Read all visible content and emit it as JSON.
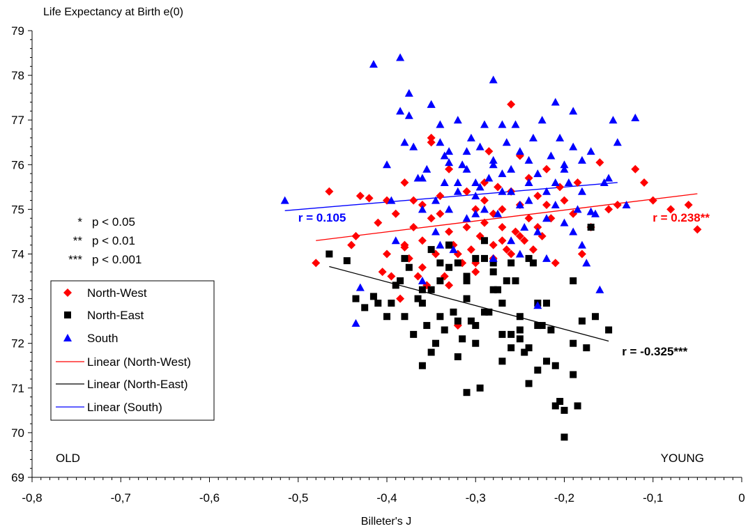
{
  "chart_data": {
    "type": "scatter",
    "title": "",
    "ylabel": "Life Expectancy at Birth e(0)",
    "xlabel": "Billeter's J",
    "xlim": [
      -0.8,
      0
    ],
    "ylim": [
      69,
      79
    ],
    "x_ticks": [
      "-0,8",
      "-0,7",
      "-0,6",
      "-0,5",
      "-0,4",
      "-0,3",
      "-0,2",
      "-0,1",
      "0"
    ],
    "y_ticks": [
      "69",
      "70",
      "71",
      "72",
      "73",
      "74",
      "75",
      "76",
      "77",
      "78",
      "79"
    ],
    "legend_placement": "left",
    "grid": false,
    "corner_labels": {
      "left": "OLD",
      "right": "YOUNG"
    },
    "significance": [
      "p < 0.05",
      "p < 0.01",
      "p < 0.001"
    ],
    "significance_stars": [
      "*",
      "**",
      "***"
    ],
    "series": [
      {
        "name": "North-West",
        "color": "#ff0000",
        "marker": "diamond",
        "x": [
          -0.48,
          -0.465,
          -0.44,
          -0.435,
          -0.43,
          -0.42,
          -0.41,
          -0.405,
          -0.4,
          -0.4,
          -0.395,
          -0.39,
          -0.385,
          -0.38,
          -0.38,
          -0.375,
          -0.37,
          -0.37,
          -0.365,
          -0.36,
          -0.36,
          -0.355,
          -0.35,
          -0.35,
          -0.345,
          -0.34,
          -0.34,
          -0.335,
          -0.33,
          -0.33,
          -0.325,
          -0.32,
          -0.315,
          -0.31,
          -0.31,
          -0.305,
          -0.3,
          -0.3,
          -0.295,
          -0.29,
          -0.29,
          -0.285,
          -0.28,
          -0.28,
          -0.275,
          -0.27,
          -0.27,
          -0.265,
          -0.26,
          -0.26,
          -0.255,
          -0.25,
          -0.25,
          -0.245,
          -0.24,
          -0.24,
          -0.235,
          -0.23,
          -0.23,
          -0.225,
          -0.22,
          -0.22,
          -0.215,
          -0.21,
          -0.205,
          -0.2,
          -0.19,
          -0.185,
          -0.18,
          -0.17,
          -0.16,
          -0.15,
          -0.14,
          -0.12,
          -0.11,
          -0.1,
          -0.08,
          -0.06,
          -0.05,
          -0.35,
          -0.33,
          -0.3,
          -0.26,
          -0.25,
          -0.28,
          -0.32,
          -0.36,
          -0.38,
          -0.29,
          -0.27
        ],
        "y": [
          73.8,
          75.4,
          74.2,
          74.4,
          75.3,
          75.25,
          74.7,
          73.6,
          74.0,
          75.2,
          73.5,
          74.9,
          73.0,
          74.2,
          75.6,
          73.9,
          74.6,
          75.2,
          73.5,
          74.3,
          75.1,
          73.3,
          74.8,
          76.6,
          74.0,
          74.9,
          75.3,
          73.5,
          74.5,
          75.9,
          74.2,
          74.0,
          73.8,
          74.6,
          75.4,
          74.1,
          75.0,
          73.8,
          74.4,
          75.2,
          74.7,
          76.3,
          73.9,
          74.2,
          75.5,
          74.6,
          75.0,
          74.1,
          75.4,
          77.35,
          74.5,
          75.1,
          76.2,
          74.3,
          74.8,
          75.7,
          74.1,
          74.6,
          75.3,
          74.4,
          75.9,
          75.1,
          74.8,
          73.8,
          75.5,
          75.2,
          74.9,
          75.6,
          74.0,
          74.6,
          76.05,
          75.0,
          75.1,
          75.9,
          75.6,
          75.2,
          75.0,
          75.1,
          74.55,
          76.5,
          73.3,
          73.6,
          74.0,
          74.4,
          74.9,
          72.4,
          73.7,
          74.15,
          75.6,
          74.3
        ]
      },
      {
        "name": "North-East",
        "color": "#000000",
        "marker": "square",
        "x": [
          -0.465,
          -0.445,
          -0.435,
          -0.425,
          -0.415,
          -0.41,
          -0.4,
          -0.395,
          -0.39,
          -0.385,
          -0.38,
          -0.375,
          -0.37,
          -0.365,
          -0.36,
          -0.36,
          -0.355,
          -0.35,
          -0.35,
          -0.345,
          -0.34,
          -0.34,
          -0.335,
          -0.33,
          -0.33,
          -0.325,
          -0.32,
          -0.32,
          -0.315,
          -0.31,
          -0.31,
          -0.305,
          -0.3,
          -0.3,
          -0.295,
          -0.29,
          -0.285,
          -0.28,
          -0.28,
          -0.275,
          -0.27,
          -0.27,
          -0.265,
          -0.26,
          -0.26,
          -0.255,
          -0.25,
          -0.25,
          -0.245,
          -0.24,
          -0.24,
          -0.235,
          -0.23,
          -0.23,
          -0.225,
          -0.22,
          -0.22,
          -0.215,
          -0.21,
          -0.205,
          -0.2,
          -0.19,
          -0.19,
          -0.185,
          -0.18,
          -0.175,
          -0.17,
          -0.165,
          -0.15,
          -0.31,
          -0.3,
          -0.29,
          -0.27,
          -0.26,
          -0.25,
          -0.32,
          -0.34,
          -0.36,
          -0.38,
          -0.28,
          -0.24,
          -0.23,
          -0.21,
          -0.2,
          -0.19,
          -0.33,
          -0.31,
          -0.29,
          -0.27,
          -0.35
        ],
        "y": [
          74.0,
          73.85,
          73.0,
          72.8,
          73.05,
          72.9,
          72.6,
          72.9,
          73.3,
          73.4,
          72.6,
          73.7,
          72.2,
          73.0,
          72.9,
          71.5,
          72.4,
          73.2,
          71.8,
          72.0,
          73.4,
          73.8,
          72.3,
          73.7,
          74.2,
          72.7,
          73.8,
          71.7,
          72.1,
          73.5,
          70.9,
          72.5,
          73.9,
          72.0,
          71.0,
          74.3,
          72.7,
          73.2,
          73.8,
          73.2,
          71.6,
          72.9,
          73.4,
          72.2,
          71.9,
          73.4,
          72.1,
          72.6,
          71.8,
          73.9,
          71.1,
          73.8,
          71.4,
          72.9,
          72.4,
          71.6,
          72.9,
          72.3,
          71.5,
          70.7,
          70.5,
          71.3,
          73.4,
          70.6,
          72.5,
          71.9,
          74.6,
          72.6,
          72.3,
          73.0,
          72.4,
          73.9,
          72.9,
          73.8,
          72.3,
          72.5,
          72.6,
          73.2,
          73.9,
          73.6,
          71.9,
          72.4,
          70.6,
          69.9,
          72.0,
          74.2,
          73.4,
          72.7,
          72.2,
          74.1
        ]
      },
      {
        "name": "South",
        "color": "#0000ff",
        "marker": "triangle",
        "x": [
          -0.515,
          -0.435,
          -0.43,
          -0.415,
          -0.4,
          -0.395,
          -0.39,
          -0.385,
          -0.38,
          -0.375,
          -0.37,
          -0.365,
          -0.36,
          -0.36,
          -0.355,
          -0.35,
          -0.345,
          -0.345,
          -0.34,
          -0.34,
          -0.335,
          -0.33,
          -0.33,
          -0.325,
          -0.32,
          -0.32,
          -0.315,
          -0.31,
          -0.31,
          -0.305,
          -0.3,
          -0.3,
          -0.295,
          -0.29,
          -0.29,
          -0.285,
          -0.28,
          -0.28,
          -0.275,
          -0.27,
          -0.27,
          -0.265,
          -0.26,
          -0.26,
          -0.255,
          -0.25,
          -0.25,
          -0.245,
          -0.24,
          -0.24,
          -0.235,
          -0.23,
          -0.23,
          -0.225,
          -0.22,
          -0.22,
          -0.215,
          -0.21,
          -0.21,
          -0.205,
          -0.2,
          -0.2,
          -0.195,
          -0.19,
          -0.19,
          -0.185,
          -0.18,
          -0.18,
          -0.175,
          -0.17,
          -0.165,
          -0.16,
          -0.155,
          -0.15,
          -0.145,
          -0.14,
          -0.13,
          -0.12,
          -0.385,
          -0.375,
          -0.35,
          -0.335,
          -0.31,
          -0.295,
          -0.28,
          -0.26,
          -0.24,
          -0.22,
          -0.2,
          -0.18,
          -0.33,
          -0.3,
          -0.27,
          -0.25,
          -0.23,
          -0.21,
          -0.19,
          -0.17,
          -0.36,
          -0.34,
          -0.32,
          -0.28
        ],
        "y": [
          75.2,
          72.45,
          73.25,
          78.25,
          76.0,
          75.2,
          74.3,
          78.4,
          76.5,
          77.6,
          76.4,
          75.7,
          73.4,
          75.0,
          75.9,
          77.35,
          75.2,
          74.5,
          76.9,
          74.2,
          75.6,
          76.3,
          75.0,
          74.1,
          77.0,
          75.4,
          76.0,
          74.8,
          75.9,
          76.6,
          75.6,
          74.9,
          76.4,
          75.0,
          76.9,
          75.7,
          77.9,
          76.1,
          74.9,
          76.9,
          75.4,
          76.5,
          74.3,
          75.9,
          76.9,
          75.1,
          76.3,
          74.6,
          76.1,
          75.6,
          76.6,
          74.5,
          75.8,
          77.0,
          73.9,
          75.4,
          76.2,
          75.1,
          77.4,
          76.6,
          75.9,
          74.7,
          75.6,
          77.2,
          76.4,
          75.0,
          76.1,
          74.2,
          73.8,
          76.3,
          74.9,
          73.2,
          75.6,
          75.7,
          77.0,
          76.5,
          75.1,
          77.05,
          77.2,
          77.1,
          77.35,
          76.2,
          76.3,
          75.5,
          76.0,
          75.4,
          75.2,
          74.8,
          76.0,
          75.4,
          76.05,
          75.3,
          75.8,
          74.0,
          72.85,
          75.6,
          74.5,
          74.95,
          75.7,
          76.5,
          75.6,
          73.9
        ]
      }
    ],
    "trendlines": [
      {
        "name": "Linear (North-West)",
        "series": "North-West",
        "color": "#ff0000",
        "x": [
          -0.48,
          -0.05
        ],
        "y": [
          74.3,
          75.35
        ],
        "label": "r = 0.238**",
        "label_x": -0.04,
        "label_y": 74.82
      },
      {
        "name": "Linear (North-East)",
        "series": "North-East",
        "color": "#000000",
        "x": [
          -0.465,
          -0.15
        ],
        "y": [
          73.72,
          72.05
        ],
        "label": "r = -0.325***",
        "label_x": -0.135,
        "label_y": 71.82
      },
      {
        "name": "Linear (South)",
        "series": "South",
        "color": "#0000ff",
        "x": [
          -0.515,
          -0.14
        ],
        "y": [
          74.97,
          75.6
        ],
        "label": "r = 0.105",
        "label_x": -0.5,
        "label_y": 74.82
      }
    ]
  }
}
